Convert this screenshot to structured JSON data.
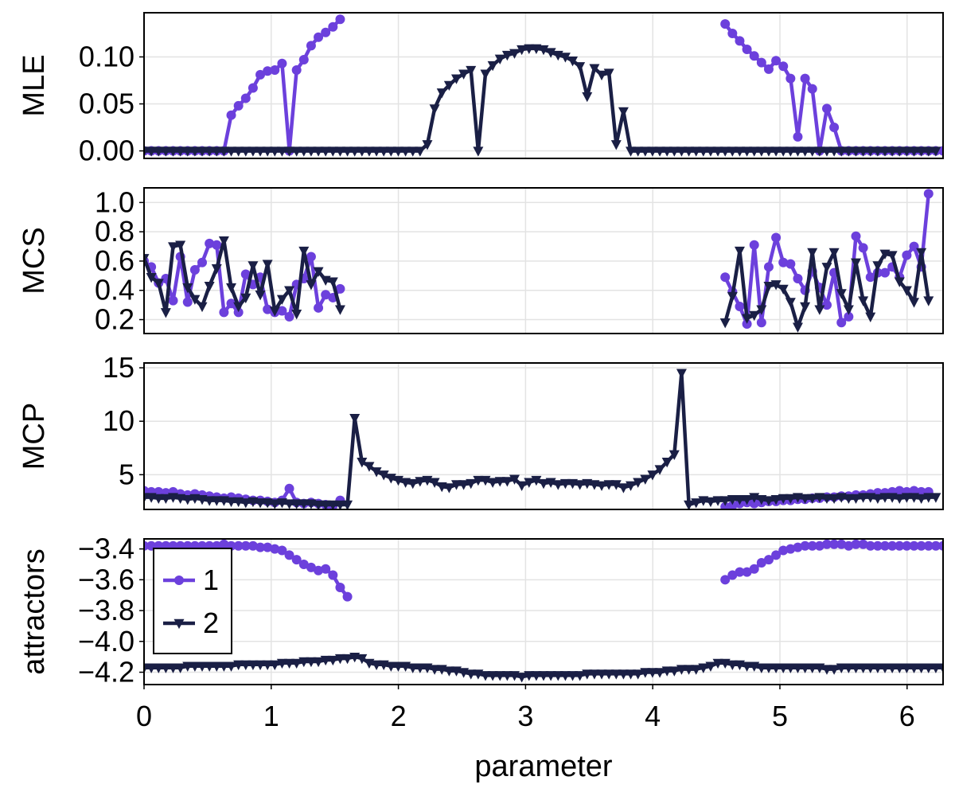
{
  "chart_data": [
    {
      "type": "line",
      "panel": "MLE",
      "ylabel": "MLE",
      "xlabel": "",
      "xlim": [
        0,
        6.283
      ],
      "ylim": [
        -0.008,
        0.147
      ],
      "yticks": [
        0.0,
        0.05,
        0.1
      ],
      "ytick_labels": [
        "0.00",
        "0.05",
        "0.10"
      ],
      "grid": true,
      "x_step": 0.05712,
      "series": [
        {
          "name": "1",
          "marker": "circle",
          "color": "#6c40dc",
          "values": [
            0,
            0,
            0,
            0,
            0,
            0,
            0,
            0,
            0,
            0,
            0,
            0,
            0.038,
            0.048,
            0.056,
            0.067,
            0.081,
            0.085,
            0.086,
            0.093,
            0,
            0.086,
            0.097,
            0.112,
            0.121,
            0.126,
            0.132,
            0.14,
            null,
            null,
            null,
            null,
            null,
            null,
            null,
            null,
            null,
            null,
            null,
            null,
            null,
            null,
            null,
            null,
            null,
            null,
            null,
            null,
            null,
            null,
            null,
            null,
            null,
            null,
            null,
            null,
            null,
            null,
            null,
            null,
            null,
            null,
            null,
            null,
            null,
            null,
            null,
            null,
            null,
            null,
            null,
            null,
            null,
            null,
            null,
            null,
            null,
            null,
            null,
            null,
            0.135,
            0.125,
            0.117,
            0.108,
            0.101,
            0.094,
            0.087,
            0.096,
            0.09,
            0.077,
            0.015,
            0.077,
            0.066,
            0,
            0.045,
            0.025,
            0,
            0,
            0,
            0,
            0,
            0,
            0,
            0,
            0,
            0,
            0,
            0,
            0,
            0,
            0,
            0,
            0
          ]
        },
        {
          "name": "2",
          "marker": "triangle-down",
          "color": "#1a1f45",
          "values": [
            0,
            0,
            0,
            0,
            0,
            0,
            0,
            0,
            0,
            0,
            0,
            0,
            0,
            0,
            0,
            0,
            0,
            0,
            0,
            0,
            0,
            0,
            0,
            0,
            0,
            0,
            0,
            0,
            0,
            0,
            0,
            0,
            0,
            0,
            0,
            0,
            0,
            0,
            0,
            0.007,
            0.045,
            0.062,
            0.07,
            0.077,
            0.082,
            0.086,
            0,
            0.082,
            0.091,
            0.098,
            0.102,
            0.104,
            0.108,
            0.109,
            0.109,
            0.108,
            0.105,
            0.102,
            0.1,
            0.096,
            0.09,
            0.058,
            0.088,
            0.081,
            0.083,
            0.007,
            0.042,
            0,
            0,
            0,
            0,
            0,
            0,
            0,
            0,
            0,
            0,
            0,
            0,
            0,
            0,
            0,
            0,
            0,
            0,
            0,
            0,
            0,
            0,
            0,
            0,
            0,
            0,
            0,
            0,
            0,
            0,
            0,
            0,
            0,
            0,
            0,
            0,
            0,
            0,
            0,
            0,
            0,
            0,
            0
          ]
        }
      ]
    },
    {
      "type": "line",
      "panel": "MCS",
      "ylabel": "MCS",
      "xlabel": "",
      "xlim": [
        0,
        6.283
      ],
      "ylim": [
        0.105,
        1.1
      ],
      "yticks": [
        0.2,
        0.4,
        0.6,
        0.8,
        1.0
      ],
      "ytick_labels": [
        "0.2",
        "0.4",
        "0.6",
        "0.8",
        "1.0"
      ],
      "grid": true,
      "x_step": 0.05712,
      "series": [
        {
          "name": "1",
          "marker": "circle",
          "color": "#6c40dc",
          "values": [
            0.6,
            0.56,
            0.45,
            0.48,
            0.33,
            0.63,
            0.32,
            0.54,
            0.59,
            0.72,
            0.71,
            0.25,
            0.31,
            0.25,
            0.51,
            0.44,
            0.49,
            0.27,
            0.25,
            0.26,
            0.22,
            0.44,
            0.48,
            0.63,
            0.28,
            0.37,
            0.35,
            0.41,
            null,
            null,
            null,
            null,
            null,
            null,
            null,
            null,
            null,
            null,
            null,
            null,
            null,
            null,
            null,
            null,
            null,
            null,
            null,
            null,
            null,
            null,
            null,
            null,
            null,
            null,
            null,
            null,
            null,
            null,
            null,
            null,
            null,
            null,
            null,
            null,
            null,
            null,
            null,
            null,
            null,
            null,
            null,
            null,
            null,
            null,
            null,
            null,
            null,
            null,
            null,
            null,
            0.49,
            0.39,
            0.29,
            0.17,
            0.71,
            0.18,
            0.56,
            0.76,
            0.59,
            0.58,
            0.48,
            0.4,
            0.53,
            0.42,
            0.3,
            0.52,
            0.18,
            0.22,
            0.77,
            0.69,
            0.49,
            0.52,
            0.52,
            0.56,
            0.49,
            0.64,
            0.7,
            0.56,
            1.06
          ]
        },
        {
          "name": "2",
          "marker": "triangle-down",
          "color": "#1a1f45",
          "values": [
            0.62,
            0.49,
            0.45,
            0.25,
            0.7,
            0.71,
            0.42,
            0.34,
            0.29,
            0.43,
            0.55,
            0.74,
            0.42,
            0.29,
            0.35,
            0.57,
            0.37,
            0.58,
            0.26,
            0.34,
            0.4,
            0.24,
            0.67,
            0.44,
            0.53,
            0.47,
            0.46,
            0.27,
            null,
            null,
            null,
            null,
            null,
            null,
            null,
            null,
            null,
            null,
            null,
            null,
            null,
            null,
            null,
            null,
            null,
            null,
            null,
            null,
            null,
            null,
            null,
            null,
            null,
            null,
            null,
            null,
            null,
            null,
            null,
            null,
            null,
            null,
            null,
            null,
            null,
            null,
            null,
            null,
            null,
            null,
            null,
            null,
            null,
            null,
            null,
            null,
            null,
            null,
            null,
            null,
            0.18,
            0.36,
            0.67,
            0.21,
            0.23,
            0.27,
            0.43,
            0.44,
            0.41,
            0.32,
            0.15,
            0.29,
            0.66,
            0.27,
            0.56,
            0.66,
            0.38,
            0.27,
            0.59,
            0.33,
            0.22,
            0.57,
            0.65,
            0.64,
            0.46,
            0.4,
            0.32,
            0.66,
            0.33
          ]
        }
      ]
    },
    {
      "type": "line",
      "panel": "MCP",
      "ylabel": "MCP",
      "xlabel": "",
      "xlim": [
        0,
        6.283
      ],
      "ylim": [
        1.75,
        15.45
      ],
      "yticks": [
        5,
        10,
        15
      ],
      "ytick_labels": [
        "5",
        "10",
        "15"
      ],
      "grid": true,
      "x_step": 0.05712,
      "series": [
        {
          "name": "1",
          "marker": "circle",
          "color": "#6c40dc",
          "values": [
            3.5,
            3.4,
            3.4,
            3.3,
            3.4,
            3.2,
            3.1,
            3.2,
            3.1,
            3.0,
            2.9,
            2.8,
            2.9,
            2.8,
            2.7,
            2.6,
            2.6,
            2.5,
            2.4,
            2.6,
            3.7,
            2.4,
            2.3,
            2.4,
            2.3,
            2.2,
            2.1,
            2.6,
            null,
            null,
            null,
            null,
            null,
            null,
            null,
            null,
            null,
            null,
            null,
            null,
            null,
            null,
            null,
            null,
            null,
            null,
            null,
            null,
            null,
            null,
            null,
            null,
            null,
            null,
            null,
            null,
            null,
            null,
            null,
            null,
            null,
            null,
            null,
            null,
            null,
            null,
            null,
            null,
            null,
            null,
            null,
            null,
            null,
            null,
            null,
            null,
            null,
            null,
            null,
            null,
            2.0,
            2.1,
            2.3,
            2.4,
            2.3,
            2.4,
            2.5,
            2.5,
            2.6,
            2.6,
            2.7,
            2.7,
            2.8,
            2.8,
            2.9,
            2.9,
            3.0,
            3.0,
            3.1,
            3.1,
            3.2,
            3.3,
            3.3,
            3.4,
            3.5,
            3.4,
            3.5,
            3.4,
            3.4
          ]
        },
        {
          "name": "2",
          "marker": "triangle-down",
          "color": "#1a1f45",
          "values": [
            2.9,
            2.9,
            2.8,
            2.8,
            2.9,
            2.8,
            2.7,
            2.8,
            2.7,
            2.6,
            2.6,
            2.6,
            2.5,
            2.5,
            2.4,
            2.5,
            2.4,
            2.4,
            2.3,
            2.4,
            2.3,
            2.3,
            2.3,
            2.3,
            2.2,
            2.2,
            2.2,
            2.2,
            2.2,
            10.3,
            6.2,
            5.8,
            5.3,
            5.0,
            4.7,
            4.5,
            4.3,
            4.2,
            4.4,
            4.5,
            4.3,
            3.9,
            3.8,
            4.1,
            4.1,
            4.2,
            4.5,
            4.5,
            4.3,
            4.4,
            4.4,
            4.6,
            4.0,
            4.3,
            4.5,
            4.2,
            4.3,
            4.1,
            4.2,
            4.2,
            4.1,
            4.2,
            4.1,
            4.0,
            4.1,
            4.1,
            3.8,
            4.0,
            4.3,
            4.6,
            5.0,
            5.5,
            6.2,
            6.9,
            14.5,
            2.2,
            2.4,
            2.6,
            2.5,
            2.6,
            2.6,
            2.7,
            2.7,
            2.7,
            2.9,
            2.7,
            2.6,
            2.7,
            2.8,
            2.8,
            2.9,
            2.8,
            2.8,
            2.9,
            2.8,
            2.8,
            2.9,
            2.8,
            2.8,
            2.9,
            2.9,
            2.8,
            2.9,
            2.9,
            2.8,
            2.9,
            2.9,
            2.8,
            2.9,
            2.9
          ]
        }
      ]
    },
    {
      "type": "line",
      "panel": "attractors",
      "ylabel": "attractors",
      "xlabel": "parameter",
      "xlim": [
        0,
        6.283
      ],
      "xticks": [
        0,
        1,
        2,
        3,
        4,
        5,
        6
      ],
      "xtick_labels": [
        "0",
        "1",
        "2",
        "3",
        "4",
        "5",
        "6"
      ],
      "ylim": [
        -4.28,
        -3.335
      ],
      "yticks": [
        -4.2,
        -4.0,
        -3.8,
        -3.6,
        -3.4
      ],
      "ytick_labels": [
        "−4.2",
        "−4.0",
        "−3.8",
        "−3.6",
        "−3.4"
      ],
      "grid": true,
      "x_step": 0.05712,
      "legend": {
        "placement": "top-left",
        "entries": [
          "1",
          "2"
        ]
      },
      "series": [
        {
          "name": "1",
          "marker": "circle",
          "color": "#6c40dc",
          "values": [
            -3.38,
            -3.38,
            -3.38,
            -3.38,
            -3.38,
            -3.38,
            -3.38,
            -3.38,
            -3.38,
            -3.38,
            -3.38,
            -3.37,
            -3.38,
            -3.38,
            -3.38,
            -3.38,
            -3.39,
            -3.39,
            -3.4,
            -3.41,
            -3.44,
            -3.47,
            -3.5,
            -3.52,
            -3.54,
            -3.53,
            -3.57,
            -3.65,
            -3.71,
            null,
            null,
            null,
            null,
            null,
            null,
            null,
            null,
            null,
            null,
            null,
            null,
            null,
            null,
            null,
            null,
            null,
            null,
            null,
            null,
            null,
            null,
            null,
            null,
            null,
            null,
            null,
            null,
            null,
            null,
            null,
            null,
            null,
            null,
            null,
            null,
            null,
            null,
            null,
            null,
            null,
            null,
            null,
            null,
            null,
            null,
            null,
            null,
            null,
            null,
            null,
            -3.6,
            -3.57,
            -3.55,
            -3.55,
            -3.53,
            -3.49,
            -3.47,
            -3.44,
            -3.41,
            -3.4,
            -3.39,
            -3.38,
            -3.38,
            -3.38,
            -3.37,
            -3.37,
            -3.37,
            -3.38,
            -3.37,
            -3.37,
            -3.38,
            -3.38,
            -3.38,
            -3.38,
            -3.38,
            -3.38,
            -3.38,
            -3.38,
            -3.38,
            -3.38,
            -3.38
          ]
        },
        {
          "name": "2",
          "marker": "triangle-down",
          "color": "#1a1f45",
          "values": [
            -4.17,
            -4.17,
            -4.17,
            -4.17,
            -4.17,
            -4.17,
            -4.16,
            -4.16,
            -4.16,
            -4.16,
            -4.16,
            -4.16,
            -4.16,
            -4.15,
            -4.15,
            -4.15,
            -4.15,
            -4.15,
            -4.15,
            -4.14,
            -4.14,
            -4.14,
            -4.13,
            -4.13,
            -4.13,
            -4.12,
            -4.12,
            -4.11,
            -4.11,
            -4.1,
            -4.11,
            -4.14,
            -4.15,
            -4.15,
            -4.16,
            -4.16,
            -4.16,
            -4.17,
            -4.17,
            -4.17,
            -4.18,
            -4.18,
            -4.19,
            -4.19,
            -4.2,
            -4.21,
            -4.21,
            -4.22,
            -4.22,
            -4.22,
            -4.22,
            -4.22,
            -4.23,
            -4.22,
            -4.22,
            -4.22,
            -4.22,
            -4.22,
            -4.22,
            -4.22,
            -4.22,
            -4.21,
            -4.21,
            -4.21,
            -4.21,
            -4.21,
            -4.21,
            -4.21,
            -4.21,
            -4.2,
            -4.2,
            -4.2,
            -4.19,
            -4.19,
            -4.18,
            -4.18,
            -4.18,
            -4.17,
            -4.16,
            -4.14,
            -4.14,
            -4.15,
            -4.15,
            -4.16,
            -4.16,
            -4.17,
            -4.17,
            -4.17,
            -4.17,
            -4.17,
            -4.17,
            -4.17,
            -4.17,
            -4.17,
            -4.18,
            -4.18,
            -4.17,
            -4.17,
            -4.17,
            -4.17,
            -4.17,
            -4.17,
            -4.17,
            -4.17,
            -4.17,
            -4.17,
            -4.17,
            -4.17,
            -4.17,
            -4.17,
            -4.17
          ]
        }
      ]
    }
  ]
}
